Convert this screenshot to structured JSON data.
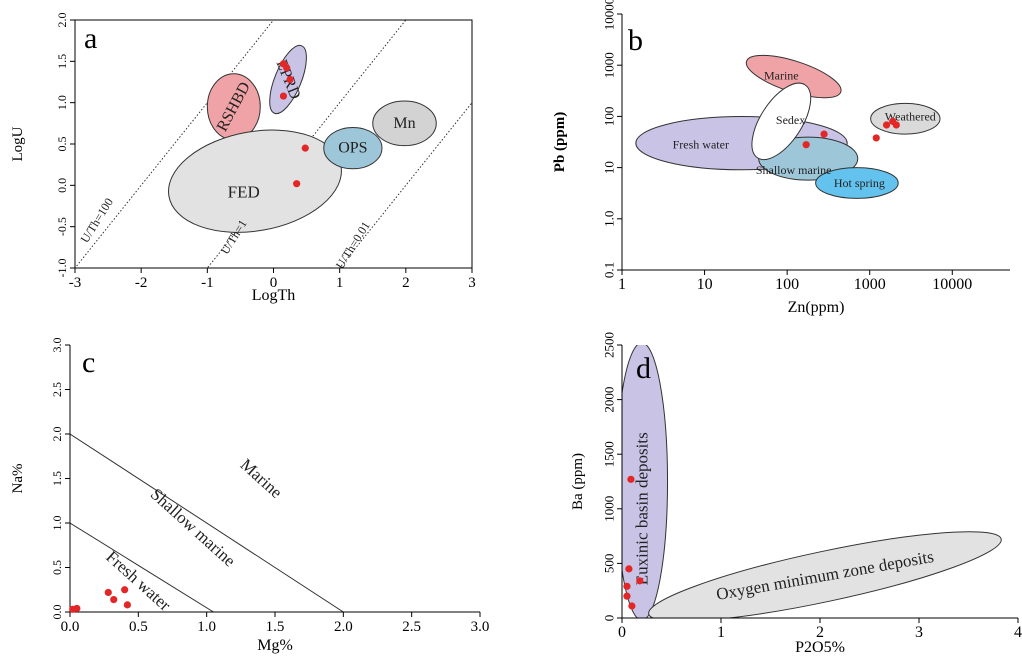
{
  "chart_data": [
    {
      "panel": "a",
      "type": "scatter",
      "xlabel": "LogTh",
      "ylabel": "LogU",
      "xlim": [
        -3,
        3
      ],
      "ylim": [
        -1.0,
        2.0
      ],
      "xticks": [
        "-3",
        "-2",
        "-1",
        "0",
        "1",
        "2",
        "3"
      ],
      "yticks": [
        "-1.0",
        "-0.5",
        "0.0",
        "0.5",
        "1.0",
        "1.5",
        "2.0"
      ],
      "ratio_lines": [
        {
          "label": "U/Th=100",
          "offset": 2
        },
        {
          "label": "U/Th=1",
          "offset": 0
        },
        {
          "label": "U/Th=0.01",
          "offset": -2
        }
      ],
      "regions": [
        {
          "label": "EPRD",
          "color": "#c9c3e6",
          "cx": 0.22,
          "cy": 1.28,
          "rx": 0.2,
          "ry": 0.44,
          "rot": 22
        },
        {
          "label": "RSHBD",
          "color": "#f0a3a7",
          "cx": -0.6,
          "cy": 0.95,
          "rx": 0.4,
          "ry": 0.4,
          "rot": 0
        },
        {
          "label": "FED",
          "color": "#e2e2e2",
          "cx": -0.28,
          "cy": 0.05,
          "rx": 1.32,
          "ry": 0.6,
          "rot": -10
        },
        {
          "label": "OPS",
          "color": "#9dc6d8",
          "cx": 1.2,
          "cy": 0.45,
          "rx": 0.44,
          "ry": 0.25,
          "rot": 0
        },
        {
          "label": "Mn",
          "color": "#d3d3d3",
          "cx": 1.98,
          "cy": 0.75,
          "rx": 0.48,
          "ry": 0.27,
          "rot": 0
        }
      ],
      "points": [
        [
          0.15,
          1.47
        ],
        [
          0.2,
          1.42
        ],
        [
          0.25,
          1.28
        ],
        [
          0.15,
          1.08
        ],
        [
          0.48,
          0.45
        ],
        [
          0.35,
          0.02
        ]
      ]
    },
    {
      "panel": "b",
      "type": "scatter",
      "xlabel": "Zn(ppm)",
      "ylabel": "Pb (ppm)",
      "xscale": "log",
      "yscale": "log",
      "xlim": [
        1,
        50000
      ],
      "ylim": [
        0.1,
        10000
      ],
      "xticks": [
        "1",
        "10",
        "100",
        "1000",
        "10000"
      ],
      "yticks": [
        "0.1",
        "1.0",
        "10",
        "100",
        "1000",
        "10000"
      ],
      "regions": [
        {
          "label": "Fresh water",
          "color": "#c9c3e6",
          "cx": 28,
          "cy": 30,
          "rx": 1.28,
          "ry": 0.52,
          "rot": 0
        },
        {
          "label": "Marine",
          "color": "#f0a3a7",
          "cx": 120,
          "cy": 600,
          "rx": 0.6,
          "ry": 0.3,
          "rot": 18
        },
        {
          "label": "Shallow marine",
          "color": "#9dc6d8",
          "cx": 180,
          "cy": 15,
          "rx": 0.6,
          "ry": 0.42,
          "rot": 0
        },
        {
          "label": "Sedex",
          "color": "#ffffff",
          "cx": 85,
          "cy": 80,
          "rx": 0.25,
          "ry": 0.85,
          "rot": 33
        },
        {
          "label": "Hot spring",
          "color": "#63c3ee",
          "cx": 700,
          "cy": 5,
          "rx": 0.5,
          "ry": 0.3,
          "rot": 0
        },
        {
          "label": "Weathered",
          "color": "#dadada",
          "cx": 2700,
          "cy": 90,
          "rx": 0.42,
          "ry": 0.3,
          "rot": 0
        }
      ],
      "points": [
        [
          170,
          28
        ],
        [
          280,
          45
        ],
        [
          1200,
          38
        ],
        [
          1600,
          68
        ],
        [
          1900,
          80
        ],
        [
          2100,
          68
        ]
      ]
    },
    {
      "panel": "c",
      "type": "scatter",
      "xlabel": "Mg%",
      "ylabel": "Na%",
      "xlim": [
        0.0,
        3.0
      ],
      "ylim": [
        0.0,
        3.0
      ],
      "xticks": [
        "0.0",
        "0.5",
        "1.0",
        "1.5",
        "2.0",
        "2.5",
        "3.0"
      ],
      "yticks": [
        "0.0",
        "0.5",
        "1.0",
        "1.5",
        "2.0",
        "2.5",
        "3.0"
      ],
      "boundaries": [
        [
          [
            0,
            2
          ],
          [
            2,
            0
          ]
        ],
        [
          [
            0,
            1
          ],
          [
            1.05,
            0
          ]
        ]
      ],
      "regions": [
        {
          "label": "Marine",
          "x": 1.4,
          "y": 1.5,
          "rot": 42,
          "size": 17
        },
        {
          "label": "Shallow marine",
          "x": 0.9,
          "y": 0.95,
          "rot": 42,
          "size": 17
        },
        {
          "label": "Fresh water",
          "x": 0.5,
          "y": 0.35,
          "rot": 42,
          "size": 17
        }
      ],
      "points": [
        [
          0.02,
          0.03
        ],
        [
          0.05,
          0.04
        ],
        [
          0.28,
          0.22
        ],
        [
          0.32,
          0.14
        ],
        [
          0.4,
          0.25
        ],
        [
          0.42,
          0.08
        ]
      ]
    },
    {
      "panel": "d",
      "type": "scatter",
      "xlabel": "P2O5%",
      "ylabel": "Ba (ppm)",
      "xlim": [
        0,
        4
      ],
      "ylim": [
        0,
        2500
      ],
      "xticks": [
        "0",
        "1",
        "2",
        "3",
        "4"
      ],
      "yticks": [
        "0",
        "500",
        "1000",
        "1500",
        "2000",
        "2500"
      ],
      "regions": [
        {
          "label": "Euxinic basin deposits",
          "color": "#c9c3e6",
          "cx": 0.2,
          "cy": 1250,
          "rx": 0.26,
          "ry": 1270,
          "rot": 0,
          "text_rot": -90
        },
        {
          "label": "Oxygen minimum zone deposits",
          "color": "#e2e2e2",
          "cx": 2.05,
          "cy": 380,
          "rx": 1.82,
          "ry": 230,
          "rot": -12,
          "text_rot": -10
        }
      ],
      "points": [
        [
          0.07,
          450
        ],
        [
          0.05,
          290
        ],
        [
          0.05,
          200
        ],
        [
          0.1,
          110
        ],
        [
          0.18,
          340
        ],
        [
          0.09,
          1270
        ]
      ]
    }
  ]
}
